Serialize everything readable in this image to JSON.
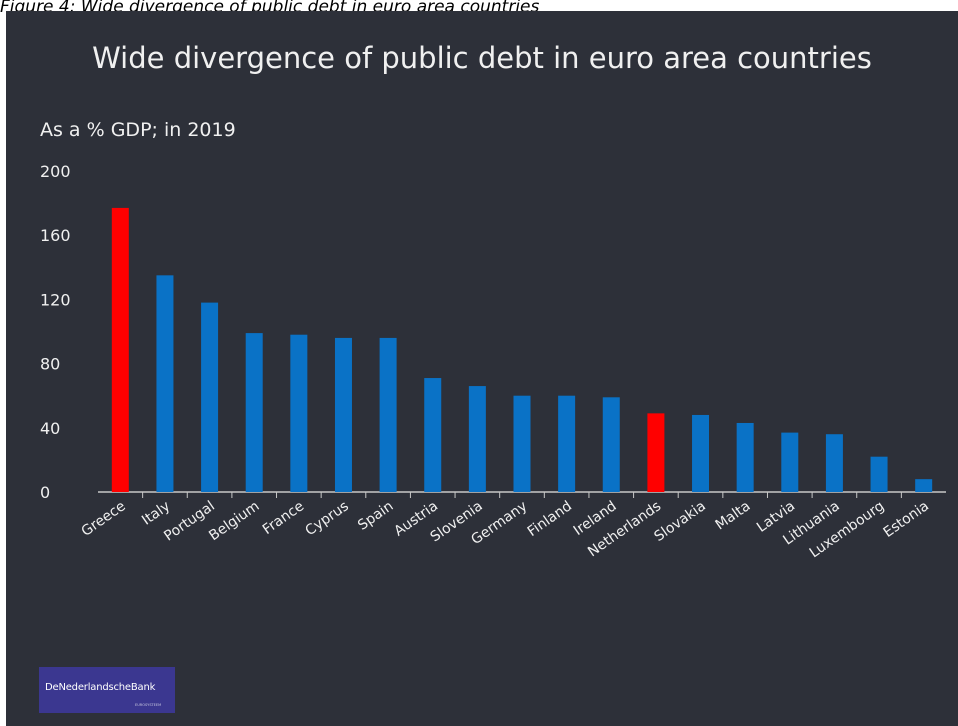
{
  "caption": "Figure 4: Wide divergence of public debt in euro area countries",
  "logo": {
    "name": "DeNederlandscheBank",
    "sub": "EUROSYSTEEM"
  },
  "colors": {
    "background": "#2d3039",
    "bar": "#0a72c6",
    "highlight": "#ff0000",
    "text": "#f0f0f0"
  },
  "chart_data": {
    "type": "bar",
    "title": "Wide divergence of public debt in euro area countries",
    "subtitle": "As a % GDP; in 2019",
    "xlabel": "",
    "ylabel": "",
    "ylim": [
      0,
      200
    ],
    "yticks": [
      0,
      40,
      80,
      120,
      160,
      200
    ],
    "grid": false,
    "categories": [
      "Greece",
      "Italy",
      "Portugal",
      "Belgium",
      "France",
      "Cyprus",
      "Spain",
      "Austria",
      "Slovenia",
      "Germany",
      "Finland",
      "Ireland",
      "Netherlands",
      "Slovakia",
      "Malta",
      "Latvia",
      "Lithuania",
      "Luxembourg",
      "Estonia"
    ],
    "values": [
      177,
      135,
      118,
      99,
      98,
      96,
      96,
      71,
      66,
      60,
      60,
      59,
      49,
      48,
      43,
      37,
      36,
      22,
      8
    ],
    "highlighted": [
      "Greece",
      "Netherlands"
    ]
  }
}
